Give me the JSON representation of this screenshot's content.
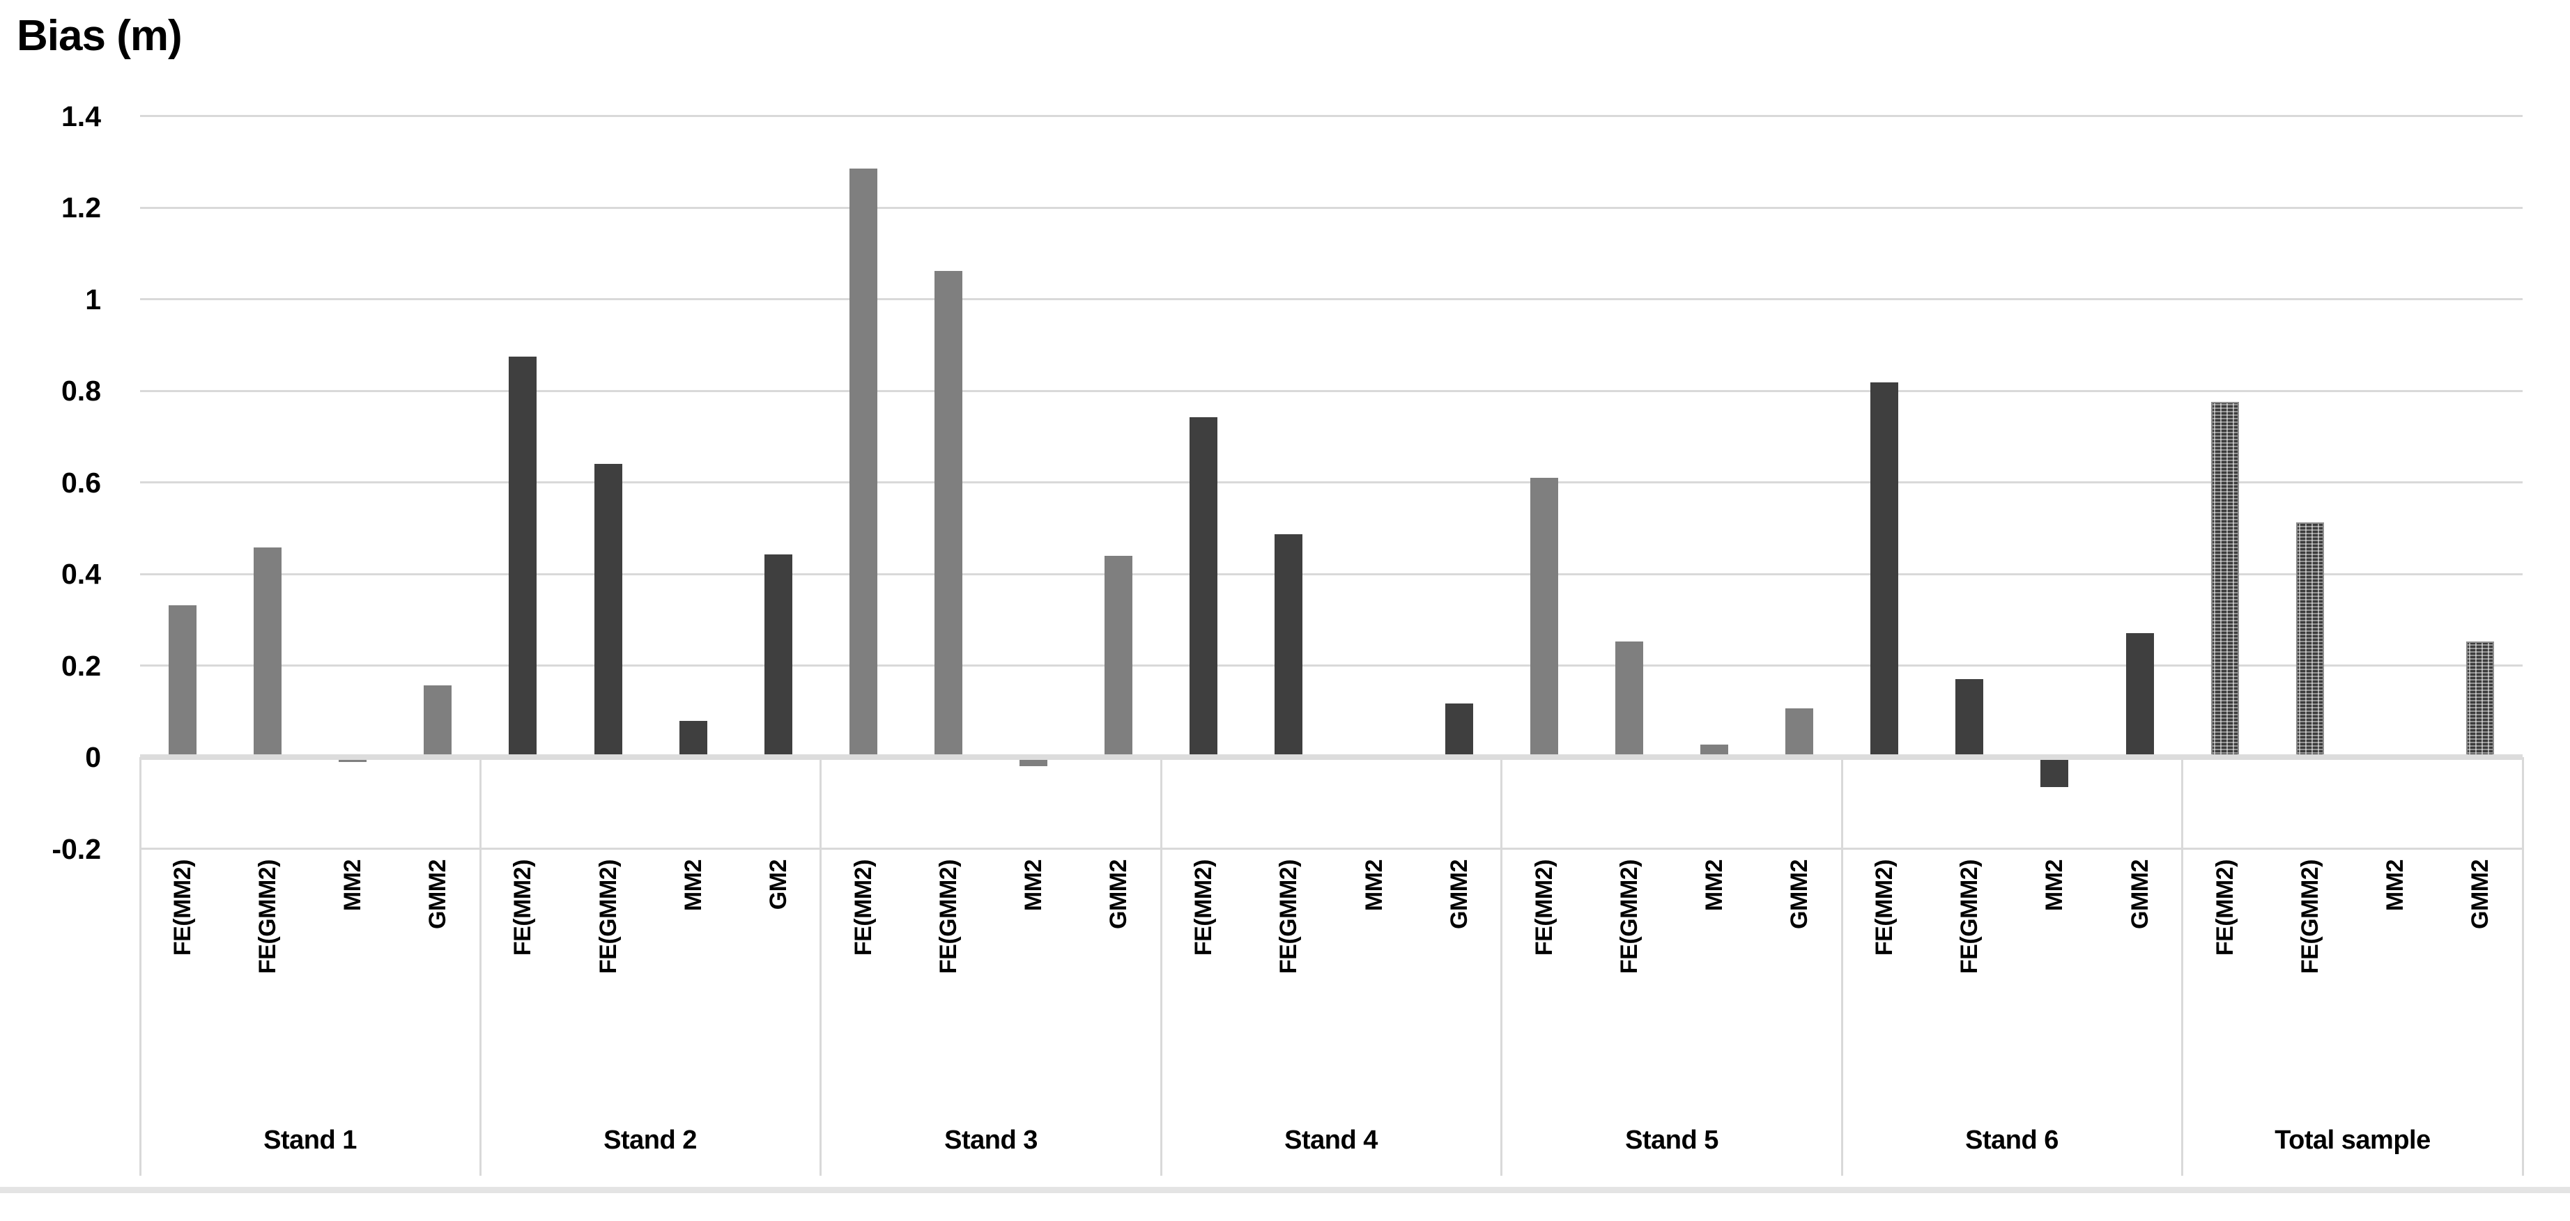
{
  "chart_data": {
    "type": "bar",
    "title": "Bias (m)",
    "legend_position": "none",
    "grid": true,
    "y_axis": {
      "min": -0.2,
      "max": 1.4,
      "tick_step": 0.2,
      "ticks": [
        1.4,
        1.2,
        1.0,
        0.8,
        0.6,
        0.4,
        0.2,
        0.0,
        -0.2
      ],
      "tick_labels": [
        "1.4",
        "1.2",
        "1",
        "0.8",
        "0.6",
        "0.4",
        "0.2",
        "0",
        "-0.2"
      ]
    },
    "groups": [
      {
        "name": "Stand 1",
        "fill": "gray",
        "bars": [
          {
            "label": "FE(MM2)",
            "value": 0.332
          },
          {
            "label": "FE(GMM2)",
            "value": 0.458
          },
          {
            "label": "MM2",
            "value": -0.01
          },
          {
            "label": "GMM2",
            "value": 0.157
          }
        ]
      },
      {
        "name": "Stand 2",
        "fill": "dark",
        "bars": [
          {
            "label": "FE(MM2)",
            "value": 0.875
          },
          {
            "label": "FE(GMM2)",
            "value": 0.64
          },
          {
            "label": "MM2",
            "value": 0.079
          },
          {
            "label": "GM2",
            "value": 0.443
          }
        ]
      },
      {
        "name": "Stand 3",
        "fill": "gray",
        "bars": [
          {
            "label": "FE(MM2)",
            "value": 1.285
          },
          {
            "label": "FE(GMM2)",
            "value": 1.062
          },
          {
            "label": "MM2",
            "value": -0.02
          },
          {
            "label": "GMM2",
            "value": 0.44
          }
        ]
      },
      {
        "name": "Stand 4",
        "fill": "dark",
        "bars": [
          {
            "label": "FE(MM2)",
            "value": 0.742
          },
          {
            "label": "FE(GMM2)",
            "value": 0.486
          },
          {
            "label": "MM2",
            "value": 0.0
          },
          {
            "label": "GMM2",
            "value": 0.117
          }
        ]
      },
      {
        "name": "Stand 5",
        "fill": "gray",
        "bars": [
          {
            "label": "FE(MM2)",
            "value": 0.61
          },
          {
            "label": "FE(GMM2)",
            "value": 0.252
          },
          {
            "label": "MM2",
            "value": 0.028
          },
          {
            "label": "GMM2",
            "value": 0.107
          }
        ]
      },
      {
        "name": "Stand 6",
        "fill": "dark",
        "bars": [
          {
            "label": "FE(MM2)",
            "value": 0.818
          },
          {
            "label": "FE(GMM2)",
            "value": 0.17
          },
          {
            "label": "MM2",
            "value": -0.065
          },
          {
            "label": "GMM2",
            "value": 0.27
          }
        ]
      },
      {
        "name": "Total sample",
        "fill": "pattern",
        "bars": [
          {
            "label": "FE(MM2)",
            "value": 0.776
          },
          {
            "label": "FE(GMM2)",
            "value": 0.513
          },
          {
            "label": "MM2",
            "value": 0.0
          },
          {
            "label": "GMM2",
            "value": 0.253
          }
        ]
      }
    ],
    "colors": {
      "solid_gray": "#7f7f7f",
      "solid_dark": "#3f3f3f",
      "pattern_dark": "#3c3c3c",
      "pattern_light": "#a0a0a0",
      "gridline": "#d9d9d9",
      "zero_line": "#dcdcdc",
      "bottom_rule": "#e4e4e4",
      "text": "#000000",
      "background": "#ffffff"
    }
  }
}
